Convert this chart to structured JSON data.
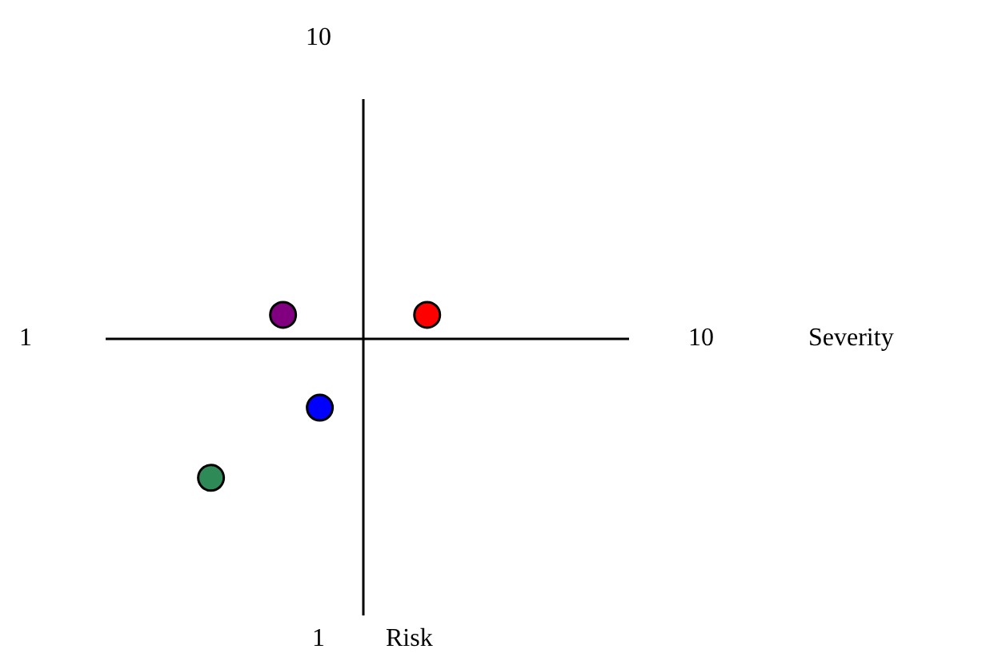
{
  "chart_data": {
    "type": "scatter",
    "xlabel": "Severity",
    "ylabel": "Risk",
    "x": [
      4.43,
      6.35,
      4.92,
      3.47
    ],
    "values": [
      5.86,
      5.86,
      4.47,
      3.42
    ],
    "colors": [
      "#800080",
      "#ff0000",
      "#0000ff",
      "#2e8b57"
    ],
    "xlim": [
      1,
      10
    ],
    "ylim": [
      1,
      10
    ],
    "xticks": [
      1,
      10
    ],
    "yticks": [
      1,
      10
    ],
    "marker": "circle",
    "grid": false,
    "legend": false
  }
}
